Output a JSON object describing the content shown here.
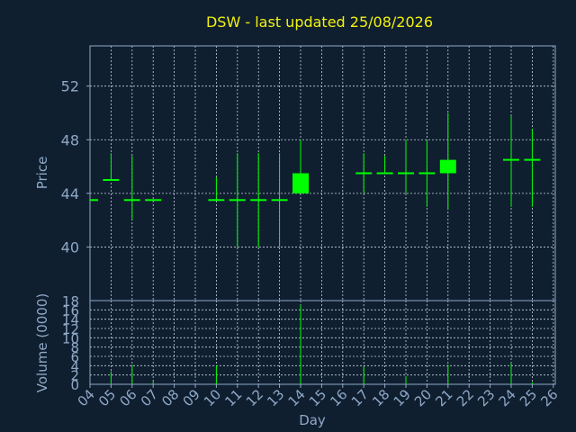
{
  "chart_data": {
    "type": "candlestick",
    "title": "DSW - last updated 25/08/2026",
    "xlabel": "Day",
    "x_ticks": [
      "04",
      "05",
      "06",
      "07",
      "08",
      "09",
      "10",
      "11",
      "12",
      "13",
      "14",
      "15",
      "16",
      "17",
      "18",
      "19",
      "20",
      "21",
      "22",
      "23",
      "24",
      "25",
      "26"
    ],
    "price_panel": {
      "ylabel": "Price",
      "ylim": [
        36.0,
        55.0
      ],
      "y_ticks": [
        40,
        44,
        48,
        52
      ],
      "grid": true
    },
    "volume_panel": {
      "ylabel": "Volume (0000)",
      "ylim": [
        0,
        18
      ],
      "y_ticks": [
        0,
        2,
        4,
        6,
        8,
        10,
        12,
        14,
        16,
        18
      ],
      "grid": true
    },
    "candles": [
      {
        "day": 4,
        "open": 43.5,
        "high": 43.5,
        "low": 43.5,
        "close": 43.5
      },
      {
        "day": 5,
        "open": 45.0,
        "high": 47.0,
        "low": 45.0,
        "close": 45.0
      },
      {
        "day": 6,
        "open": 43.5,
        "high": 46.8,
        "low": 42.0,
        "close": 43.5
      },
      {
        "day": 7,
        "open": 43.5,
        "high": 43.5,
        "low": 43.5,
        "close": 43.5
      },
      {
        "day": 10,
        "open": 43.5,
        "high": 45.2,
        "low": 43.5,
        "close": 43.5
      },
      {
        "day": 11,
        "open": 43.5,
        "high": 47.0,
        "low": 40.0,
        "close": 43.5
      },
      {
        "day": 12,
        "open": 43.5,
        "high": 47.0,
        "low": 40.0,
        "close": 43.5
      },
      {
        "day": 13,
        "open": 43.5,
        "high": 47.0,
        "low": 40.0,
        "close": 43.5
      },
      {
        "day": 14,
        "open": 44.0,
        "high": 48.0,
        "low": 44.0,
        "close": 45.5
      },
      {
        "day": 17,
        "open": 45.5,
        "high": 47.0,
        "low": 44.0,
        "close": 45.5
      },
      {
        "day": 18,
        "open": 45.5,
        "high": 46.8,
        "low": 45.5,
        "close": 45.5
      },
      {
        "day": 19,
        "open": 45.5,
        "high": 48.0,
        "low": 44.0,
        "close": 45.5
      },
      {
        "day": 20,
        "open": 45.5,
        "high": 48.0,
        "low": 43.0,
        "close": 45.5
      },
      {
        "day": 21,
        "open": 45.5,
        "high": 50.0,
        "low": 42.8,
        "close": 46.5
      },
      {
        "day": 24,
        "open": 46.5,
        "high": 49.8,
        "low": 43.0,
        "close": 46.5
      },
      {
        "day": 25,
        "open": 46.5,
        "high": 48.8,
        "low": 43.0,
        "close": 46.5
      }
    ],
    "volumes": [
      {
        "day": 5,
        "value": 2.8
      },
      {
        "day": 6,
        "value": 4.2
      },
      {
        "day": 7,
        "value": 0.6
      },
      {
        "day": 10,
        "value": 4.0
      },
      {
        "day": 14,
        "value": 17.0
      },
      {
        "day": 17,
        "value": 3.8
      },
      {
        "day": 19,
        "value": 1.8
      },
      {
        "day": 21,
        "value": 4.2
      },
      {
        "day": 24,
        "value": 4.6
      },
      {
        "day": 25,
        "value": 0.4
      }
    ],
    "colors": {
      "background": "#0f1f30",
      "axis": "#8fa8c6",
      "grid": "#c8d0dc",
      "candle": "#00ff00",
      "title": "#f2f20f"
    }
  }
}
